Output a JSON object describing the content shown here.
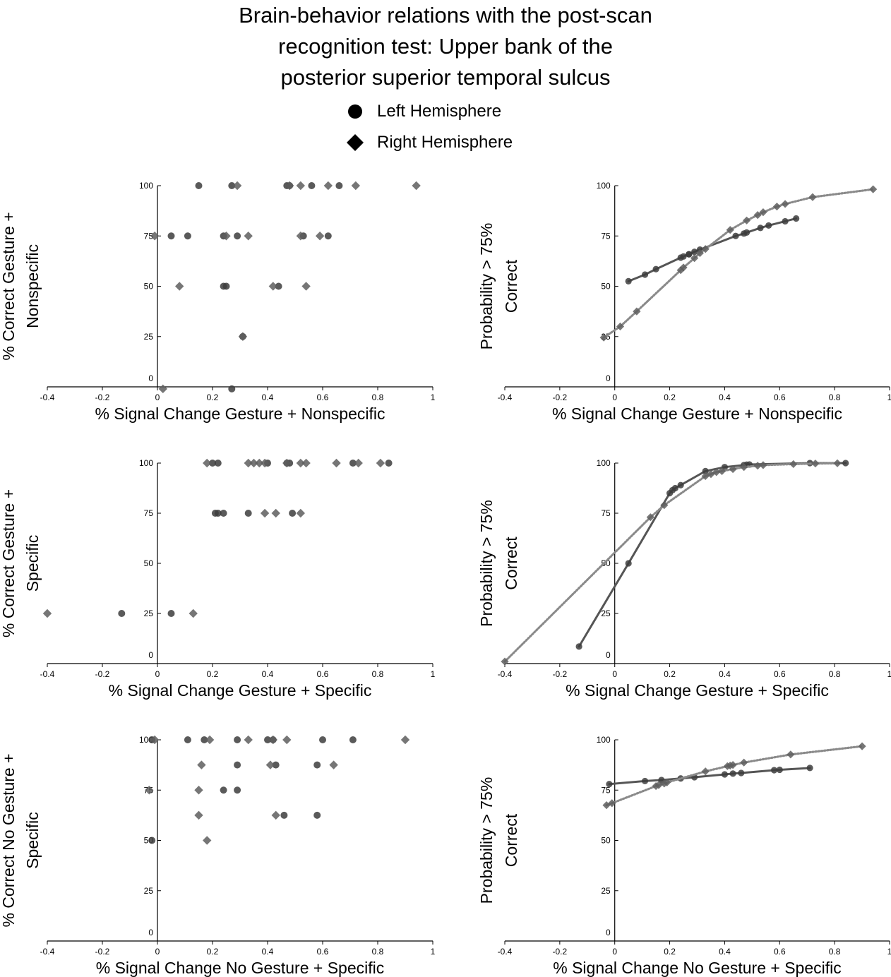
{
  "title_lines": [
    "Brain-behavior relations with the post-scan",
    "recognition test: Upper bank of the",
    "posterior superior temporal sulcus"
  ],
  "legend": {
    "left": "Left Hemisphere",
    "right": "Right Hemisphere"
  },
  "colors": {
    "left_marker": "#3d3d3d",
    "right_marker": "#5e5e5e",
    "left_line": "#555555",
    "right_line": "#8a8a8a"
  },
  "chart_data": [
    {
      "type": "scatter",
      "xlabel": "% Signal Change Gesture + Nonspecific",
      "ylabel": [
        "% Correct Gesture +",
        "Nonspecific"
      ],
      "xlim": [
        -0.4,
        1
      ],
      "ylim": [
        0,
        100
      ],
      "xticks": [
        "-0.4",
        "-0.2",
        "0",
        "0.2",
        "0.4",
        "0.6",
        "0.8",
        "1"
      ],
      "yticks": [
        "0",
        "25",
        "50",
        "75",
        "100"
      ],
      "grid": false,
      "series": [
        {
          "name": "Left Hemisphere",
          "marker": "circle",
          "x": [
            0.15,
            0.27,
            0.47,
            0.48,
            0.56,
            0.66,
            0.05,
            0.11,
            0.24,
            0.29,
            0.53,
            0.62,
            0.24,
            0.25,
            0.44,
            0.31,
            0.27
          ],
          "y": [
            100,
            100,
            100,
            100,
            100,
            100,
            75,
            75,
            75,
            75,
            75,
            75,
            50,
            50,
            50,
            25,
            -1
          ]
        },
        {
          "name": "Right Hemisphere",
          "marker": "diamond",
          "x": [
            0.29,
            0.48,
            0.52,
            0.62,
            0.72,
            0.94,
            -0.01,
            0.25,
            0.33,
            0.52,
            0.59,
            0.08,
            0.42,
            0.54,
            0.31,
            0.02
          ],
          "y": [
            100,
            100,
            100,
            100,
            100,
            100,
            75,
            75,
            75,
            75,
            75,
            50,
            50,
            50,
            25,
            -1
          ]
        }
      ]
    },
    {
      "type": "line",
      "xlabel": "% Signal Change Gesture + Nonspecific",
      "ylabel": [
        "Probability > 75%",
        "Correct"
      ],
      "xlim": [
        -0.4,
        1
      ],
      "ylim": [
        0,
        100
      ],
      "xticks": [
        "-0.4",
        "-0.2",
        "0",
        "0.2",
        "0.4",
        "0.6",
        "0.8",
        "1"
      ],
      "yticks": [
        "0",
        "25",
        "50",
        "75",
        "100"
      ],
      "grid": false,
      "series": [
        {
          "name": "Left Hemisphere",
          "marker": "circle",
          "line": "solid",
          "x": [
            0.05,
            0.11,
            0.15,
            0.24,
            0.25,
            0.27,
            0.27,
            0.29,
            0.31,
            0.44,
            0.47,
            0.48,
            0.53,
            0.56,
            0.62,
            0.66
          ],
          "y": [
            52.5,
            55.8,
            58.5,
            64.2,
            64.8,
            65.9,
            65.9,
            67.1,
            68.2,
            75.0,
            76.2,
            76.7,
            79.0,
            80.2,
            82.3,
            83.7
          ]
        },
        {
          "name": "Right Hemisphere",
          "marker": "diamond",
          "line": "dotted",
          "x": [
            -0.04,
            0.02,
            0.08,
            0.24,
            0.25,
            0.29,
            0.31,
            0.33,
            0.42,
            0.48,
            0.52,
            0.54,
            0.59,
            0.62,
            0.72,
            0.94
          ],
          "y": [
            24.5,
            30.0,
            37.5,
            58.0,
            59.3,
            64.0,
            66.5,
            68.5,
            78.0,
            82.7,
            85.4,
            86.8,
            89.6,
            90.9,
            94.3,
            98.2
          ]
        }
      ]
    },
    {
      "type": "scatter",
      "xlabel": "% Signal Change Gesture + Specific",
      "ylabel": [
        "% Correct Gesture +",
        "Specific"
      ],
      "xlim": [
        -0.4,
        1
      ],
      "ylim": [
        0,
        100
      ],
      "xticks": [
        "-0.4",
        "-0.2",
        "0",
        "0.2",
        "0.4",
        "0.6",
        "0.8",
        "1"
      ],
      "yticks": [
        "0",
        "25",
        "50",
        "75",
        "100"
      ],
      "grid": false,
      "series": [
        {
          "name": "Left Hemisphere",
          "marker": "circle",
          "x": [
            0.2,
            0.22,
            0.4,
            0.47,
            0.48,
            0.71,
            0.84,
            0.21,
            0.22,
            0.24,
            0.33,
            0.49,
            -0.13,
            0.05
          ],
          "y": [
            100,
            100,
            100,
            100,
            100,
            100,
            100,
            75,
            75,
            75,
            75,
            75,
            25,
            25
          ]
        },
        {
          "name": "Right Hemisphere",
          "marker": "diamond",
          "x": [
            0.18,
            0.33,
            0.35,
            0.37,
            0.39,
            0.47,
            0.52,
            0.54,
            0.65,
            0.73,
            0.81,
            0.39,
            0.43,
            0.52,
            -0.4,
            0.13
          ],
          "y": [
            100,
            100,
            100,
            100,
            100,
            100,
            100,
            100,
            100,
            100,
            100,
            75,
            75,
            75,
            25,
            25
          ]
        }
      ]
    },
    {
      "type": "line",
      "xlabel": "% Signal Change Gesture + Specific",
      "ylabel": [
        "Probability > 75%",
        "Correct"
      ],
      "xlim": [
        -0.4,
        1
      ],
      "ylim": [
        0,
        100
      ],
      "xticks": [
        "-0.4",
        "-0.2",
        "0",
        "0.2",
        "0.4",
        "0.6",
        "0.8",
        "1"
      ],
      "yticks": [
        "0",
        "25",
        "50",
        "75",
        "100"
      ],
      "grid": false,
      "series": [
        {
          "name": "Left Hemisphere",
          "marker": "circle",
          "line": "solid",
          "x": [
            -0.13,
            0.05,
            0.2,
            0.21,
            0.22,
            0.24,
            0.33,
            0.4,
            0.47,
            0.48,
            0.49,
            0.71,
            0.84
          ],
          "y": [
            8.5,
            50.0,
            85.0,
            86.5,
            87.5,
            89.0,
            96.0,
            98.0,
            99.0,
            99.2,
            99.3,
            100.0,
            100.0
          ]
        },
        {
          "name": "Right Hemisphere",
          "marker": "diamond",
          "line": "dotted",
          "x": [
            -0.4,
            0.13,
            0.18,
            0.33,
            0.35,
            0.37,
            0.39,
            0.43,
            0.47,
            0.52,
            0.54,
            0.65,
            0.73,
            0.81
          ],
          "y": [
            1.0,
            73.0,
            79.0,
            93.5,
            94.5,
            95.5,
            96.0,
            97.0,
            98.0,
            98.7,
            99.0,
            99.5,
            99.8,
            99.9
          ]
        }
      ]
    },
    {
      "type": "scatter",
      "xlabel": "% Signal Change No Gesture + Specific",
      "ylabel": [
        "% Correct No Gesture +",
        "Specific"
      ],
      "xlim": [
        -0.4,
        1
      ],
      "ylim": [
        0,
        100
      ],
      "xticks": [
        "-0.4",
        "-0.2",
        "0",
        "0.2",
        "0.4",
        "0.6",
        "0.8",
        "1"
      ],
      "yticks": [
        "0",
        "25",
        "50",
        "75",
        "100"
      ],
      "grid": false,
      "series": [
        {
          "name": "Left Hemisphere",
          "marker": "circle",
          "x": [
            -0.02,
            0.11,
            0.17,
            0.29,
            0.4,
            0.42,
            0.6,
            0.71,
            0.29,
            0.43,
            0.58,
            0.24,
            0.29,
            0.46,
            0.58,
            -0.02
          ],
          "y": [
            100,
            100,
            100,
            100,
            100,
            100,
            100,
            100,
            87.5,
            87.5,
            87.5,
            75,
            75,
            62.5,
            62.5,
            50
          ]
        },
        {
          "name": "Right Hemisphere",
          "marker": "diamond",
          "x": [
            -0.01,
            0.19,
            0.33,
            0.42,
            0.47,
            0.9,
            0.16,
            0.41,
            0.64,
            -0.03,
            0.15,
            0.15,
            0.43,
            0.18
          ],
          "y": [
            100,
            100,
            100,
            100,
            100,
            100,
            87.5,
            87.5,
            87.5,
            75,
            75,
            62.5,
            62.5,
            50
          ]
        }
      ]
    },
    {
      "type": "line",
      "xlabel": "% Signal Change No Gesture + Specific",
      "ylabel": [
        "Probability > 75%",
        "Correct"
      ],
      "xlim": [
        -0.4,
        1
      ],
      "ylim": [
        0,
        100
      ],
      "xticks": [
        "-0.4",
        "-0.2",
        "0",
        "0.2",
        "0.4",
        "0.6",
        "0.8",
        "1"
      ],
      "yticks": [
        "0",
        "25",
        "50",
        "75",
        "100"
      ],
      "grid": false,
      "series": [
        {
          "name": "Left Hemisphere",
          "marker": "circle",
          "line": "solid",
          "x": [
            -0.02,
            0.11,
            0.17,
            0.24,
            0.29,
            0.4,
            0.43,
            0.46,
            0.58,
            0.6,
            0.71
          ],
          "y": [
            78.0,
            79.5,
            80.0,
            80.8,
            81.4,
            82.8,
            83.2,
            83.5,
            84.9,
            85.1,
            86.0
          ]
        },
        {
          "name": "Right Hemisphere",
          "marker": "diamond",
          "line": "dotted",
          "x": [
            -0.03,
            -0.01,
            0.15,
            0.16,
            0.18,
            0.19,
            0.33,
            0.41,
            0.42,
            0.43,
            0.47,
            0.64,
            0.9
          ],
          "y": [
            67.5,
            68.5,
            77.0,
            77.5,
            78.3,
            78.8,
            84.3,
            86.9,
            87.2,
            87.5,
            88.7,
            92.7,
            96.8
          ]
        }
      ]
    }
  ]
}
